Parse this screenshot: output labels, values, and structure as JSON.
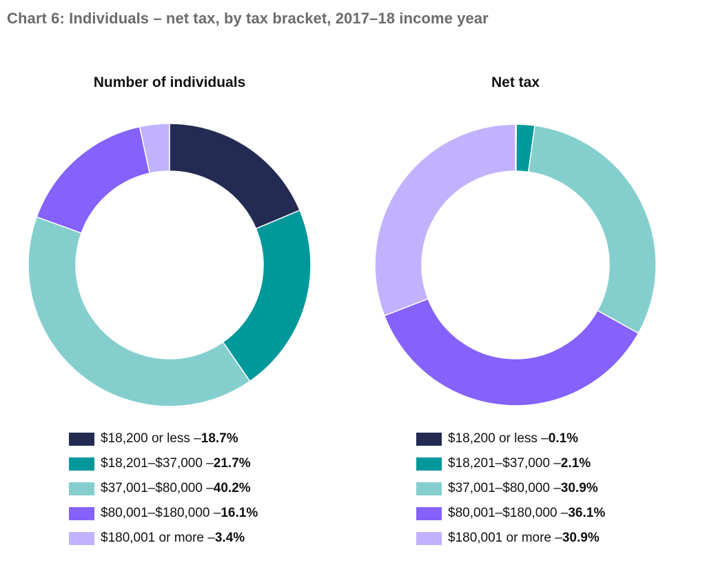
{
  "title": "Chart 6: Individuals – net tax, by tax bracket, 2017–18 income year",
  "colors": {
    "b1": "#242b52",
    "b2": "#00989a",
    "b3": "#84cfce",
    "b4": "#8462fb",
    "b5": "#c2b2fd"
  },
  "chart_data": [
    {
      "type": "pie",
      "title": "Number of individuals",
      "categories": [
        "$18,200 or less",
        "$18,201–$37,000",
        "$37,001–$80,000",
        "$80,001–$180,000",
        "$180,001 or more"
      ],
      "values": [
        18.7,
        21.7,
        40.2,
        16.1,
        3.4
      ],
      "labels": [
        "18.7%",
        "21.7%",
        "40.2%",
        "16.1%",
        "3.4%"
      ],
      "legend": [
        {
          "text": "$18,200 or less – ",
          "value": "18.7%",
          "color": "#242b52"
        },
        {
          "text": "$18,201–$37,000 – ",
          "value": "21.7%",
          "color": "#00989a"
        },
        {
          "text": "$37,001–$80,000 – ",
          "value": "40.2%",
          "color": "#84cfce"
        },
        {
          "text": "$80,001–$180,000 – ",
          "value": "16.1%",
          "color": "#8462fb"
        },
        {
          "text": "$180,001 or more – ",
          "value": "3.4%",
          "color": "#c2b2fd"
        }
      ],
      "legend_placement": "bottom"
    },
    {
      "type": "pie",
      "title": "Net tax",
      "categories": [
        "$18,200 or less",
        "$18,201–$37,000",
        "$37,001–$80,000",
        "$80,001–$180,000",
        "$180,001 or more"
      ],
      "values": [
        0.1,
        2.1,
        30.9,
        36.1,
        30.9
      ],
      "labels": [
        "0.1%",
        "2.1%",
        "30.9%",
        "36.1%",
        "30.9%"
      ],
      "legend": [
        {
          "text": "$18,200 or less – ",
          "value": "0.1%",
          "color": "#242b52"
        },
        {
          "text": "$18,201–$37,000 – ",
          "value": "2.1%",
          "color": "#00989a"
        },
        {
          "text": "$37,001–$80,000 – ",
          "value": "30.9%",
          "color": "#84cfce"
        },
        {
          "text": "$80,001–$180,000 – ",
          "value": "36.1%",
          "color": "#8462fb"
        },
        {
          "text": "$180,001 or more – ",
          "value": "30.9%",
          "color": "#c2b2fd"
        }
      ],
      "legend_placement": "bottom"
    }
  ]
}
